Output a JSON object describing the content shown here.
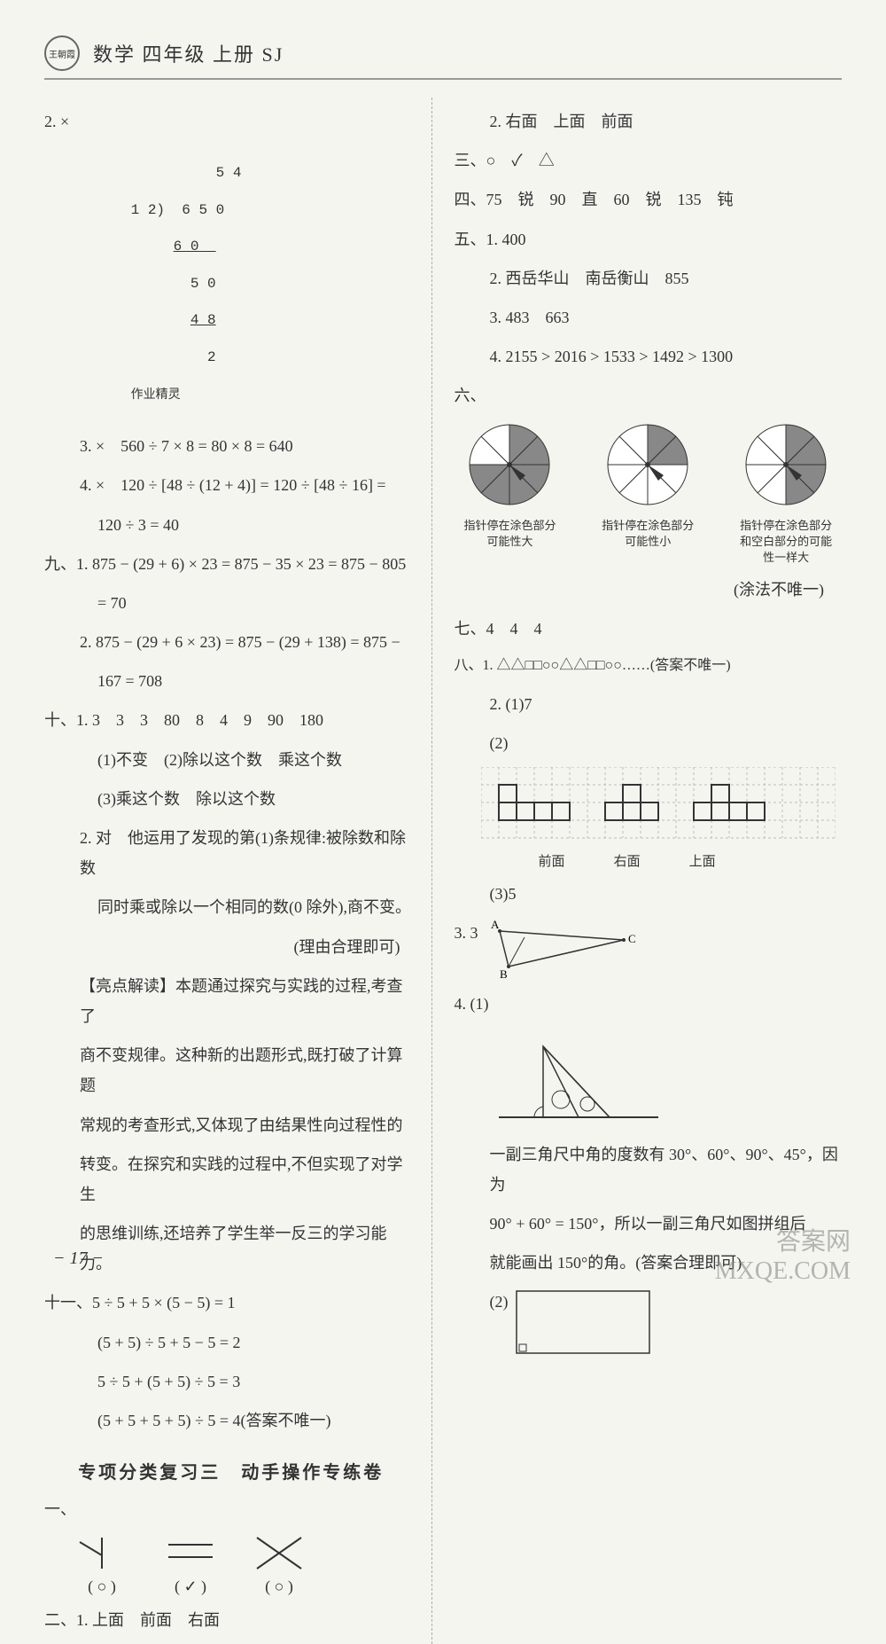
{
  "header": {
    "logo_text": "王朝霞",
    "title": "数学 四年级 上册 SJ"
  },
  "left": {
    "q2": {
      "label": "2. ×",
      "quotient": "5 4",
      "divisor": "1 2",
      "dividend": "6 5 0",
      "step1": "6 0",
      "step2": "5 0",
      "step3": "4 8",
      "remainder": "2",
      "stamp": "作业精灵"
    },
    "q3": "3. ×　560 ÷ 7 × 8 = 80 × 8 = 640",
    "q4a": "4. ×　120 ÷ [48 ÷ (12 + 4)] = 120 ÷ [48 ÷ 16] =",
    "q4b": "120 ÷ 3 = 40",
    "s9_1a": "九、1. 875 − (29 + 6) × 23 = 875 − 35 × 23 = 875 − 805",
    "s9_1b": "= 70",
    "s9_2a": "2. 875 − (29 + 6 × 23) = 875 − (29 + 138) = 875 −",
    "s9_2b": "167 = 708",
    "s10_1": "十、1. 3　3　3　80　8　4　9　90　180",
    "s10_1a": "(1)不变　(2)除以这个数　乘这个数",
    "s10_1b": "(3)乘这个数　除以这个数",
    "s10_2a": "2. 对　他运用了发现的第(1)条规律:被除数和除数",
    "s10_2b": "同时乘或除以一个相同的数(0 除外),商不变。",
    "s10_2c": "(理由合理即可)",
    "highlight_title": "【亮点解读】",
    "highlight_a": "本题通过探究与实践的过程,考查了",
    "highlight_b": "商不变规律。这种新的出题形式,既打破了计算题",
    "highlight_c": "常规的考查形式,又体现了由结果性向过程性的",
    "highlight_d": "转变。在探究和实践的过程中,不但实现了对学生",
    "highlight_e": "的思维训练,还培养了学生举一反三的学习能力。",
    "s11_a": "十一、5 ÷ 5 + 5 × (5 − 5) = 1",
    "s11_b": "(5 + 5) ÷ 5 + 5 − 5 = 2",
    "s11_c": "5 ÷ 5 + (5 + 5) ÷ 5 = 3",
    "s11_d": "(5 + 5 + 5 + 5) ÷ 5 = 4(答案不唯一)",
    "sub_title": "专项分类复习三　动手操作专练卷",
    "mark1": "( ○ )",
    "mark2": "( ✓ )",
    "mark3": "( ○ )",
    "s2_1": "二、1. 上面　前面　右面"
  },
  "right": {
    "r2": "2. 右面　上面　前面",
    "s3": "三、○　✓　△",
    "s4": "四、75　锐　90　直　60　锐　135　钝",
    "s5_1": "五、1. 400",
    "s5_2": "2. 西岳华山　南岳衡山　855",
    "s5_3": "3. 483　663",
    "s5_4": "4. 2155 > 2016 > 1533 > 1492 > 1300",
    "s6": "六、",
    "pie1_cap": "指针停在涂色部分可能性大",
    "pie2_cap": "指针停在涂色部分可能性小",
    "pie3_cap": "指针停在涂色部分和空白部分的可能性一样大",
    "pie_note": "(涂法不唯一)",
    "s7": "七、4　4　4",
    "s8_1": "八、1. △△□□○○△△□□○○……(答案不唯一)",
    "s8_2_1": "2. (1)7",
    "s8_2_2": "(2)",
    "view_front": "前面",
    "view_right": "右面",
    "view_top": "上面",
    "s8_2_3": "(3)5",
    "s8_3": "3. 3",
    "s8_4_1": "4. (1)",
    "s8_4_text_a": "一副三角尺中角的度数有 30°、60°、90°、45°，因为",
    "s8_4_text_b": "90° + 60° = 150°，所以一副三角尺如图拼组后",
    "s8_4_text_c": "就能画出 150°的角。(答案合理即可)",
    "s8_4_2": "(2)"
  },
  "pies": {
    "colors": {
      "fill": "#888",
      "empty": "#fff",
      "stroke": "#333"
    },
    "pie1_shaded": [
      0,
      1,
      2,
      3,
      4,
      5
    ],
    "pie2_shaded": [
      0,
      1
    ],
    "pie3_shaded": [
      0,
      1,
      2,
      3
    ]
  },
  "page_num": "− 17 −",
  "watermark": {
    "line1": "答案网",
    "line2": "MXQE.COM"
  }
}
